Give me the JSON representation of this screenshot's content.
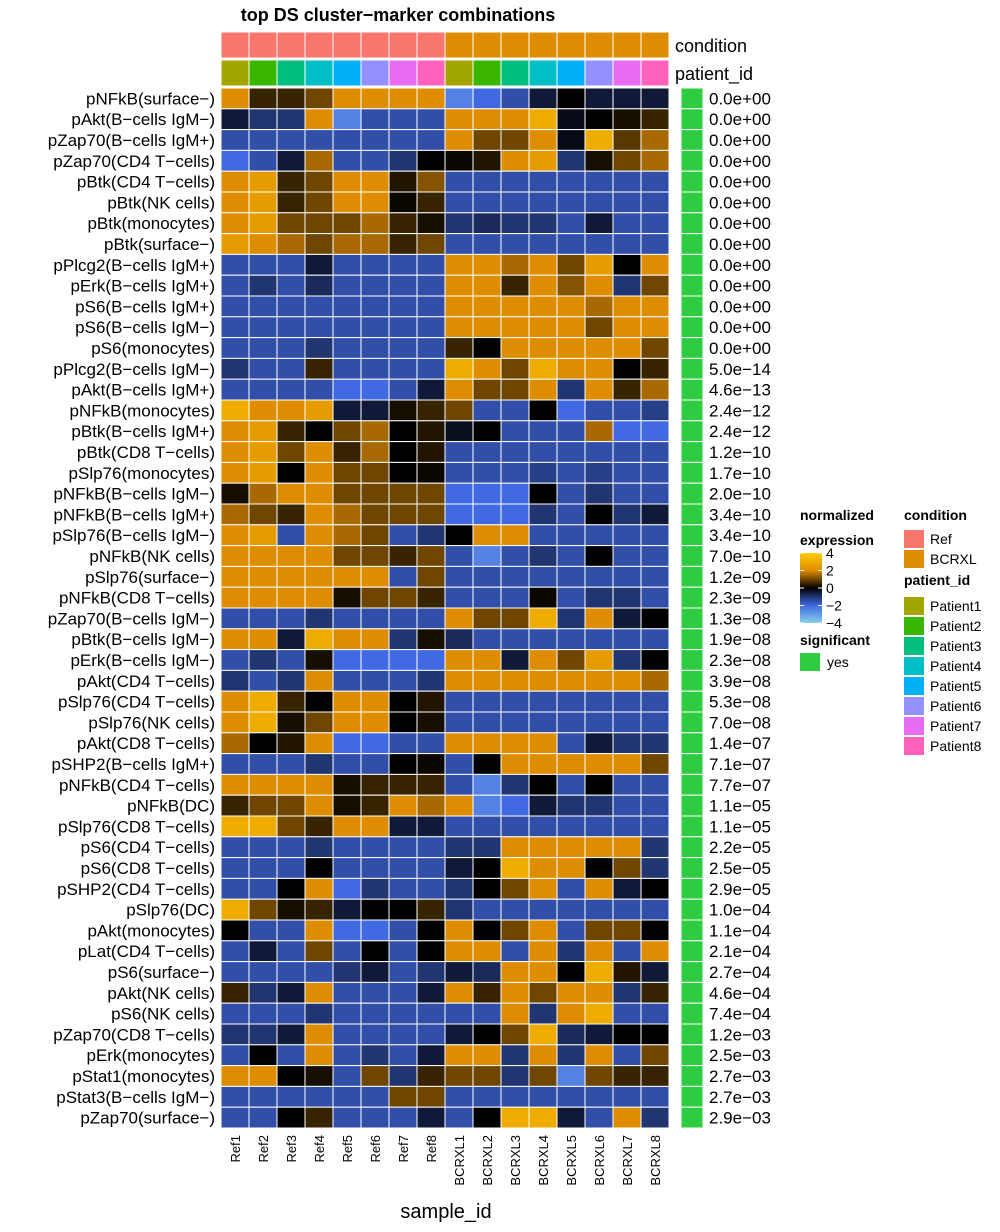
{
  "chart_data": {
    "type": "heatmap",
    "title": "top DS cluster−marker combinations",
    "xlabel": "sample_id",
    "columns": [
      "Ref1",
      "Ref2",
      "Ref3",
      "Ref4",
      "Ref5",
      "Ref6",
      "Ref7",
      "Ref8",
      "BCRXL1",
      "BCRXL2",
      "BCRXL3",
      "BCRXL4",
      "BCRXL5",
      "BCRXL6",
      "BCRXL7",
      "BCRXL8"
    ],
    "column_annotations": {
      "condition": [
        "Ref",
        "Ref",
        "Ref",
        "Ref",
        "Ref",
        "Ref",
        "Ref",
        "Ref",
        "BCRXL",
        "BCRXL",
        "BCRXL",
        "BCRXL",
        "BCRXL",
        "BCRXL",
        "BCRXL",
        "BCRXL"
      ],
      "patient_id": [
        "Patient1",
        "Patient2",
        "Patient3",
        "Patient4",
        "Patient5",
        "Patient6",
        "Patient7",
        "Patient8",
        "Patient1",
        "Patient2",
        "Patient3",
        "Patient4",
        "Patient5",
        "Patient6",
        "Patient7",
        "Patient8"
      ]
    },
    "annotation_labels": [
      "condition",
      "patient_id"
    ],
    "rows": [
      "pNFkB(surface−)",
      "pAkt(B−cells IgM−)",
      "pZap70(B−cells IgM+)",
      "pZap70(CD4 T−cells)",
      "pBtk(CD4 T−cells)",
      "pBtk(NK cells)",
      "pBtk(monocytes)",
      "pBtk(surface−)",
      "pPlcg2(B−cells IgM+)",
      "pErk(B−cells IgM+)",
      "pS6(B−cells IgM+)",
      "pS6(B−cells IgM−)",
      "pS6(monocytes)",
      "pPlcg2(B−cells IgM−)",
      "pAkt(B−cells IgM+)",
      "pNFkB(monocytes)",
      "pBtk(B−cells IgM+)",
      "pBtk(CD8 T−cells)",
      "pSlp76(monocytes)",
      "pNFkB(B−cells IgM−)",
      "pNFkB(B−cells IgM+)",
      "pSlp76(B−cells IgM−)",
      "pNFkB(NK cells)",
      "pSlp76(surface−)",
      "pNFkB(CD8 T−cells)",
      "pZap70(B−cells IgM−)",
      "pBtk(B−cells IgM−)",
      "pErk(B−cells IgM−)",
      "pAkt(CD4 T−cells)",
      "pSlp76(CD4 T−cells)",
      "pSlp76(NK cells)",
      "pAkt(CD8 T−cells)",
      "pSHP2(B−cells IgM+)",
      "pNFkB(CD4 T−cells)",
      "pNFkB(DC)",
      "pSlp76(CD8 T−cells)",
      "pS6(CD4 T−cells)",
      "pS6(CD8 T−cells)",
      "pSHP2(CD4 T−cells)",
      "pSlp76(DC)",
      "pAkt(monocytes)",
      "pLat(CD4 T−cells)",
      "pS6(surface−)",
      "pAkt(NK cells)",
      "pS6(NK cells)",
      "pZap70(CD8 T−cells)",
      "pErk(monocytes)",
      "pStat1(monocytes)",
      "pStat3(B−cells IgM−)",
      "pZap70(surface−)"
    ],
    "pvalues": [
      "0.0e+00",
      "0.0e+00",
      "0.0e+00",
      "0.0e+00",
      "0.0e+00",
      "0.0e+00",
      "0.0e+00",
      "0.0e+00",
      "0.0e+00",
      "0.0e+00",
      "0.0e+00",
      "0.0e+00",
      "0.0e+00",
      "5.0e−14",
      "4.6e−13",
      "2.4e−12",
      "2.4e−12",
      "1.2e−10",
      "1.7e−10",
      "2.0e−10",
      "3.4e−10",
      "3.4e−10",
      "7.0e−10",
      "1.2e−09",
      "2.3e−09",
      "1.3e−08",
      "1.9e−08",
      "2.3e−08",
      "3.9e−08",
      "5.3e−08",
      "7.0e−08",
      "1.4e−07",
      "7.1e−07",
      "7.7e−07",
      "1.1e−05",
      "1.1e−05",
      "2.2e−05",
      "2.5e−05",
      "2.9e−05",
      "1.0e−04",
      "1.1e−04",
      "2.1e−04",
      "2.7e−04",
      "4.6e−04",
      "7.4e−04",
      "1.2e−03",
      "2.5e−03",
      "2.7e−03",
      "2.7e−03",
      "2.9e−03"
    ],
    "significant": [
      "yes",
      "yes",
      "yes",
      "yes",
      "yes",
      "yes",
      "yes",
      "yes",
      "yes",
      "yes",
      "yes",
      "yes",
      "yes",
      "yes",
      "yes",
      "yes",
      "yes",
      "yes",
      "yes",
      "yes",
      "yes",
      "yes",
      "yes",
      "yes",
      "yes",
      "yes",
      "yes",
      "yes",
      "yes",
      "yes",
      "yes",
      "yes",
      "yes",
      "yes",
      "yes",
      "yes",
      "yes",
      "yes",
      "yes",
      "yes",
      "yes",
      "yes",
      "yes",
      "yes",
      "yes",
      "yes",
      "yes",
      "yes",
      "yes",
      "yes"
    ],
    "values": [
      [
        2,
        0.5,
        0.5,
        1,
        2,
        2,
        2,
        2,
        -2.5,
        -2,
        -1.5,
        -0.5,
        0,
        -0.5,
        -0.5,
        -0.5
      ],
      [
        -0.5,
        -1,
        -1,
        2,
        -2.5,
        -1.5,
        -1.5,
        -1.5,
        2,
        2,
        2,
        3,
        -0.2,
        0,
        0.2,
        0.5
      ],
      [
        -1.5,
        -1.5,
        -1.5,
        -1.5,
        -1.5,
        -1.5,
        -1.5,
        -1.5,
        2,
        1,
        1,
        2,
        -0.2,
        3,
        0.8,
        1.5
      ],
      [
        -2,
        -1.5,
        -0.5,
        1.5,
        -1.5,
        -1.5,
        -1,
        0,
        0.1,
        0.3,
        2,
        2.5,
        -1,
        0.2,
        1,
        1.5
      ],
      [
        2,
        2.5,
        0.5,
        1,
        2,
        2,
        0.3,
        1.2,
        -1.5,
        -1.5,
        -1.5,
        -1.5,
        -1.5,
        -1.5,
        -1.5,
        -1.5
      ],
      [
        2,
        2.5,
        0.5,
        1,
        2,
        2,
        0.1,
        0.5,
        -1.5,
        -1.5,
        -1.5,
        -1.5,
        -1.5,
        -1.5,
        -1.5,
        -1.5
      ],
      [
        2,
        2.5,
        1,
        1,
        1,
        1.5,
        0.5,
        0.2,
        -1,
        -0.8,
        -1,
        -1,
        -1.5,
        -0.5,
        -1.5,
        -1.5
      ],
      [
        2.5,
        2,
        1.5,
        1,
        1.5,
        1.5,
        0.5,
        1,
        -1.5,
        -1.5,
        -1.5,
        -1.5,
        -1.5,
        -1.5,
        -1.5,
        -1.5
      ],
      [
        -1.5,
        -1.5,
        -1.5,
        -0.5,
        -1.5,
        -1.5,
        -1.5,
        -1.5,
        2,
        2,
        1.5,
        2,
        1,
        2.5,
        0,
        2
      ],
      [
        -1.5,
        -1,
        -1.5,
        -0.8,
        -1.5,
        -1.5,
        -1.5,
        -1.5,
        2,
        2,
        0.5,
        2,
        1.2,
        2,
        -1,
        1
      ],
      [
        -1.5,
        -1.5,
        -1.5,
        -1.5,
        -1.5,
        -1.5,
        -1.5,
        -1.5,
        2,
        2,
        2,
        2,
        2,
        1.5,
        2,
        2
      ],
      [
        -1.5,
        -1.5,
        -1.5,
        -1.5,
        -1.5,
        -1.5,
        -1.5,
        -1.5,
        2,
        2,
        2,
        2,
        2,
        1,
        2,
        2
      ],
      [
        -1.5,
        -1.5,
        -1.5,
        -1,
        -1.5,
        -1.5,
        -1.5,
        -1.5,
        0.5,
        0,
        2,
        2,
        2,
        2,
        2,
        1
      ],
      [
        -1,
        -1.5,
        -1.5,
        0.5,
        -1.5,
        -1.5,
        -1.5,
        -1.5,
        3,
        2,
        1,
        3,
        2,
        2,
        0,
        0.5
      ],
      [
        -1.5,
        -1.5,
        -1.5,
        -1.5,
        -2,
        -2,
        -1.5,
        -0.5,
        2,
        1,
        1,
        2,
        -1,
        2,
        0.5,
        1.5
      ],
      [
        3,
        2,
        2,
        2.5,
        -0.5,
        -0.5,
        0.2,
        0.5,
        1,
        -1.5,
        -1.5,
        0,
        -2,
        -1.5,
        -1.5,
        -1.2
      ],
      [
        2,
        2.5,
        0.5,
        0,
        1,
        1.5,
        0,
        0.3,
        -0.3,
        0,
        -1.5,
        -1.5,
        -1.5,
        1.5,
        -2,
        -2
      ],
      [
        2,
        2.5,
        1,
        2,
        0.5,
        1.5,
        0,
        0.3,
        -1.5,
        -1.5,
        -1.5,
        -1.5,
        -1.5,
        -1.5,
        -1.5,
        -1.5
      ],
      [
        2,
        2.5,
        0,
        2,
        1,
        1,
        0,
        0.1,
        -1.5,
        -1.5,
        -1.5,
        -1.2,
        -1.5,
        -1.2,
        -1.5,
        -1.5
      ],
      [
        0.2,
        1.5,
        2,
        2,
        1,
        1,
        1,
        1,
        -2,
        -2,
        -2,
        0,
        -1.5,
        -1,
        -1.5,
        -1.5
      ],
      [
        1.5,
        1,
        0.5,
        2,
        1.5,
        1,
        1,
        1,
        -2,
        -2,
        -2,
        -1,
        -1.5,
        0,
        -1,
        -0.5
      ],
      [
        2,
        2.5,
        -1.5,
        2,
        1.5,
        1,
        -1.5,
        -1,
        0,
        2,
        2,
        -1.5,
        -1.5,
        -1.5,
        -1.5,
        -1.5
      ],
      [
        2,
        2,
        2,
        2,
        1,
        1,
        0.5,
        1,
        -1.5,
        -2.5,
        -1.5,
        -1,
        -1.5,
        0,
        -1.5,
        -1.5
      ],
      [
        2,
        2,
        2,
        2,
        2,
        2,
        -1.5,
        1,
        -1.5,
        -1.5,
        -1.5,
        -1.5,
        -1.5,
        -1.5,
        -1.5,
        -1.5
      ],
      [
        2,
        2,
        2,
        2,
        0.2,
        1,
        1,
        0.5,
        -1.5,
        -1.5,
        -1.5,
        0.1,
        -1.5,
        -1,
        -1,
        -1.5
      ],
      [
        -1.5,
        -1.5,
        -1.5,
        -1,
        -1.5,
        -1.5,
        -1.5,
        -1.5,
        2,
        1,
        1,
        3,
        -1,
        2,
        -0.5,
        0
      ],
      [
        2,
        2,
        -0.5,
        3,
        2,
        2,
        -1,
        0.2,
        -0.8,
        -1.5,
        -1.5,
        -1.5,
        -1.5,
        -1.5,
        -1.5,
        -1.5
      ],
      [
        -1.5,
        -1,
        -1.5,
        0.2,
        -2,
        -2,
        -2,
        -2,
        2,
        2,
        -0.5,
        2,
        1,
        2.5,
        -1,
        0
      ],
      [
        -1,
        -1.5,
        -1,
        2,
        -1.5,
        -1.5,
        -1.5,
        -1,
        2,
        2,
        2,
        2,
        2,
        2,
        2,
        1.5
      ],
      [
        2,
        3,
        0.5,
        0,
        2,
        2,
        0,
        0.3,
        -1.5,
        -1.5,
        -1.5,
        -1.5,
        -1.5,
        -1.5,
        -1.5,
        -1.5
      ],
      [
        2,
        3,
        0.2,
        1,
        2,
        2,
        0,
        0.2,
        -1.5,
        -1.5,
        -1.5,
        -1.5,
        -1.5,
        -1.5,
        -1.5,
        -1.5
      ],
      [
        1.5,
        0,
        0.3,
        2,
        -2,
        -2,
        -1.5,
        -1.5,
        2,
        2,
        2,
        2,
        -1.5,
        -0.5,
        -1,
        -1
      ],
      [
        -1.5,
        -1.5,
        -1.5,
        -1,
        -1.5,
        -1.5,
        0,
        0.1,
        -1.5,
        0,
        2,
        2,
        2,
        2,
        2,
        1
      ],
      [
        2,
        2,
        2,
        2,
        0.2,
        0.5,
        0.5,
        0.5,
        -1.5,
        -2.5,
        -1,
        0,
        -1.5,
        0,
        -1.5,
        -1.5
      ],
      [
        0.5,
        1,
        1,
        2,
        0.2,
        0.5,
        2,
        1.5,
        2,
        -2.5,
        -2,
        -0.5,
        -1,
        -1,
        -1.5,
        -1.5
      ],
      [
        3,
        3,
        1,
        0.5,
        2,
        2,
        -0.5,
        -0.5,
        -1.5,
        -1.5,
        -1.5,
        -1.5,
        -1.5,
        -1.5,
        -1.5,
        -1.5
      ],
      [
        -1.5,
        -1.5,
        -1.5,
        -1,
        -1.5,
        -1.5,
        -1.5,
        -1.5,
        -1,
        -1,
        2,
        2,
        2,
        2,
        2,
        -1
      ],
      [
        -1.5,
        -1.5,
        -1.5,
        0,
        -1.5,
        -1.5,
        -1.5,
        -1.5,
        -0.5,
        0,
        3,
        2,
        2,
        0,
        1,
        -1
      ],
      [
        -1.5,
        -1.5,
        0,
        2,
        -2,
        -1,
        -1.5,
        -1.5,
        -1,
        0,
        1,
        2,
        -1.5,
        2,
        -0.5,
        0
      ],
      [
        3,
        1,
        0.2,
        0.5,
        -0.5,
        0,
        0,
        0.5,
        -1,
        -1.5,
        -1.5,
        -1.5,
        -1.5,
        -1.5,
        -1.5,
        -1.5
      ],
      [
        0,
        -1.5,
        -1.5,
        2,
        -2,
        -2,
        -1.5,
        0,
        2,
        0,
        1,
        2,
        -1.5,
        1,
        1,
        0
      ],
      [
        -1.5,
        -0.5,
        -1.5,
        1,
        -1.5,
        0,
        -1.5,
        0,
        2,
        2,
        -1.5,
        2,
        -1,
        2,
        -1.5,
        2
      ],
      [
        -1.5,
        -1.5,
        -1.5,
        -1.5,
        -1,
        -0.5,
        -1.5,
        -1,
        -0.5,
        -0.8,
        2,
        2,
        0,
        3,
        0.3,
        -0.5
      ],
      [
        0.5,
        -1,
        -0.5,
        2,
        -1.5,
        -1.5,
        -1.5,
        -0.5,
        2,
        0.5,
        2,
        1,
        2,
        2,
        -1,
        0.5
      ],
      [
        -1.5,
        -1.5,
        -1.5,
        -1,
        -1.5,
        -1.5,
        -1.5,
        -1.5,
        -1.5,
        -1.5,
        2,
        -1,
        2,
        3,
        -1.5,
        -1.5
      ],
      [
        -1,
        -1,
        -0.5,
        2,
        -1.5,
        -1.5,
        -1.5,
        -1.5,
        -0.5,
        0,
        1,
        3,
        -0.8,
        -0.5,
        0,
        0
      ],
      [
        -1.5,
        0,
        -1.5,
        2,
        -1.5,
        -1,
        -1.5,
        -0.5,
        2,
        2,
        -1,
        2,
        -1,
        2,
        -1.5,
        1
      ],
      [
        2,
        2,
        0,
        0.2,
        -1.5,
        1,
        -1,
        0.5,
        1,
        1,
        -1,
        1,
        -2.5,
        1,
        0.5,
        0.5
      ],
      [
        -1.5,
        -1.5,
        -1.5,
        -1.5,
        -1.5,
        -1.5,
        1,
        1,
        -1.5,
        -1.5,
        -1.5,
        -1.5,
        -1.5,
        -1.5,
        -1.5,
        -1.5
      ],
      [
        -1.5,
        -1.5,
        0,
        0.5,
        -1.5,
        -1.5,
        -1.5,
        -0.5,
        -1.5,
        0,
        3,
        3,
        -0.5,
        -1.5,
        2,
        -1
      ]
    ],
    "color_scale": {
      "title_lines": [
        "normalized",
        "expression"
      ],
      "ticks": [
        4,
        2,
        0,
        -2,
        -4
      ],
      "range": [
        -4,
        4
      ]
    },
    "legends": {
      "condition": {
        "title": "condition",
        "items": [
          {
            "label": "Ref",
            "color": "#f8766d"
          },
          {
            "label": "BCRXL",
            "color": "#de8c00"
          }
        ]
      },
      "patient_id": {
        "title": "patient_id",
        "items": [
          {
            "label": "Patient1",
            "color": "#a3a500"
          },
          {
            "label": "Patient2",
            "color": "#39b600"
          },
          {
            "label": "Patient3",
            "color": "#00bf7d"
          },
          {
            "label": "Patient4",
            "color": "#00bfc4"
          },
          {
            "label": "Patient5",
            "color": "#00b0f6"
          },
          {
            "label": "Patient6",
            "color": "#9590ff"
          },
          {
            "label": "Patient7",
            "color": "#e76bf3"
          },
          {
            "label": "Patient8",
            "color": "#ff62bc"
          }
        ]
      },
      "significant": {
        "title": "significant",
        "items": [
          {
            "label": "yes",
            "color": "#2ecc40"
          }
        ]
      }
    }
  }
}
